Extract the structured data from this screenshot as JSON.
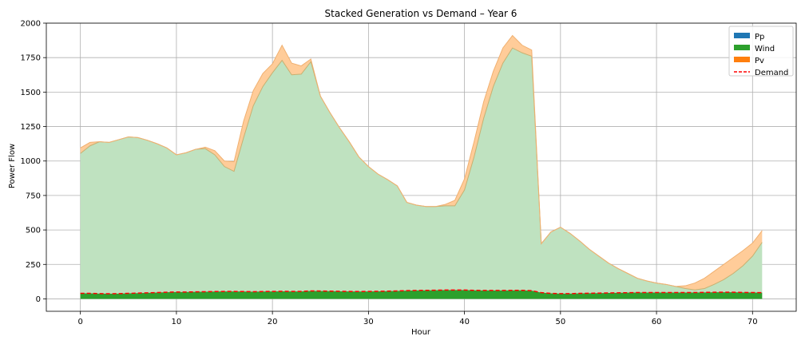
{
  "chart_data": {
    "type": "area",
    "title": "Stacked Generation vs Demand – Year 6",
    "xlabel": "Hour",
    "ylabel": "Power Flow",
    "xlim": [
      -3.55,
      74.55
    ],
    "ylim": [
      -90,
      2000
    ],
    "xticks": [
      0,
      10,
      20,
      30,
      40,
      50,
      60,
      70
    ],
    "yticks": [
      0,
      250,
      500,
      750,
      1000,
      1250,
      1500,
      1750,
      2000
    ],
    "grid": true,
    "legend_position": "top-right",
    "x": [
      0,
      1,
      2,
      3,
      4,
      5,
      6,
      7,
      8,
      9,
      10,
      11,
      12,
      13,
      14,
      15,
      16,
      17,
      18,
      19,
      20,
      21,
      22,
      23,
      24,
      25,
      26,
      27,
      28,
      29,
      30,
      31,
      32,
      33,
      34,
      35,
      36,
      37,
      38,
      39,
      40,
      41,
      42,
      43,
      44,
      45,
      46,
      47,
      48,
      49,
      50,
      51,
      52,
      53,
      54,
      55,
      56,
      57,
      58,
      59,
      60,
      61,
      62,
      63,
      64,
      65,
      66,
      67,
      68,
      69,
      70,
      71
    ],
    "series": [
      {
        "name": "Pp",
        "color": "#1f77b4",
        "fill_color": "#1f77b4",
        "style": "stacked-area",
        "values": [
          0,
          0,
          0,
          0,
          0,
          0,
          0,
          0,
          0,
          0,
          0,
          0,
          0,
          0,
          0,
          0,
          0,
          0,
          0,
          0,
          0,
          0,
          0,
          0,
          0,
          0,
          0,
          0,
          0,
          0,
          0,
          0,
          0,
          0,
          0,
          0,
          0,
          0,
          0,
          0,
          0,
          0,
          0,
          0,
          0,
          0,
          0,
          0,
          0,
          0,
          0,
          0,
          0,
          0,
          0,
          0,
          0,
          0,
          0,
          0,
          0,
          0,
          0,
          0,
          0,
          0,
          0,
          0,
          0,
          0,
          0,
          0
        ]
      },
      {
        "name": "Wind",
        "color": "#2ca02c",
        "fill_color": "#2ca02c",
        "legend_only": true,
        "values": [
          1055,
          1110,
          1140,
          1135,
          1155,
          1175,
          1170,
          1150,
          1125,
          1095,
          1045,
          1060,
          1085,
          1090,
          1045,
          960,
          925,
          1170,
          1400,
          1540,
          1640,
          1730,
          1625,
          1630,
          1720,
          1470,
          1350,
          1240,
          1140,
          1030,
          960,
          905,
          865,
          820,
          700,
          680,
          670,
          670,
          675,
          675,
          790,
          1030,
          1310,
          1540,
          1710,
          1820,
          1785,
          1760,
          400,
          485,
          520,
          475,
          420,
          360,
          310,
          260,
          220,
          185,
          150,
          130,
          115,
          105,
          90,
          75,
          65,
          75,
          105,
          140,
          185,
          240,
          310,
          410
        ]
      },
      {
        "name": "Pv",
        "color": "#ff7f0e",
        "fill_color": "#ffcc99",
        "style": "stacked-area",
        "values": [
          40,
          25,
          0,
          0,
          0,
          0,
          0,
          0,
          0,
          0,
          0,
          0,
          0,
          10,
          30,
          40,
          70,
          120,
          110,
          95,
          65,
          110,
          85,
          60,
          20,
          0,
          0,
          0,
          0,
          0,
          0,
          0,
          0,
          0,
          0,
          0,
          0,
          0,
          10,
          40,
          80,
          110,
          120,
          110,
          110,
          90,
          55,
          45,
          0,
          0,
          0,
          0,
          0,
          0,
          0,
          0,
          0,
          0,
          0,
          0,
          0,
          0,
          0,
          20,
          50,
          75,
          95,
          110,
          115,
          110,
          95,
          85
        ]
      },
      {
        "name": "Demand",
        "color": "#ff0000",
        "style": "dashed-line",
        "values": [
          40,
          40,
          38,
          37,
          38,
          40,
          42,
          44,
          46,
          48,
          50,
          50,
          51,
          52,
          53,
          54,
          54,
          53,
          52,
          53,
          54,
          55,
          54,
          54,
          58,
          57,
          56,
          55,
          54,
          53,
          54,
          55,
          56,
          58,
          60,
          61,
          62,
          63,
          64,
          64,
          64,
          62,
          61,
          61,
          61,
          62,
          62,
          60,
          45,
          40,
          38,
          38,
          40,
          41,
          42,
          43,
          44,
          45,
          46,
          46,
          46,
          46,
          46,
          46,
          46,
          47,
          48,
          48,
          48,
          47,
          46,
          45
        ]
      }
    ]
  }
}
